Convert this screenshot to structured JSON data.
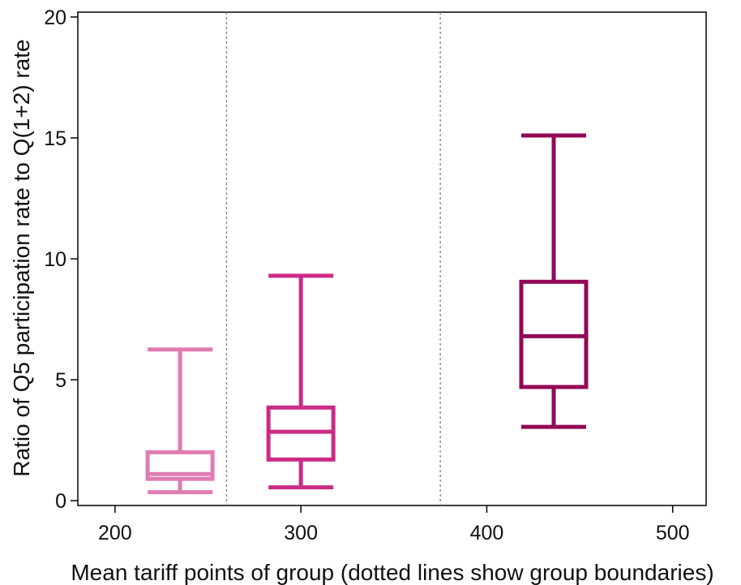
{
  "chart_data": {
    "type": "box",
    "xlabel": "Mean tariff points of group (dotted lines show group boundaries)",
    "ylabel": "Ratio of Q5 participation rate to Q(1+2) rate",
    "xlim": [
      180,
      518
    ],
    "ylim": [
      -0.2,
      20.2
    ],
    "x_ticks": [
      200,
      300,
      400,
      500
    ],
    "y_ticks": [
      0,
      5,
      10,
      15,
      20
    ],
    "group_boundaries": [
      260,
      375
    ],
    "grid": false,
    "legend": "none",
    "series": [
      {
        "x": 235,
        "whisker_low": 0.35,
        "q1": 0.9,
        "median": 1.1,
        "q3": 2.0,
        "whisker_high": 6.25,
        "color": "#e07cb3"
      },
      {
        "x": 300,
        "whisker_low": 0.55,
        "q1": 1.7,
        "median": 2.85,
        "q3": 3.85,
        "whisker_high": 9.3,
        "color": "#cc2b86"
      },
      {
        "x": 436,
        "whisker_low": 3.05,
        "q1": 4.7,
        "median": 6.8,
        "q3": 9.05,
        "whisker_high": 15.1,
        "color": "#930856"
      }
    ]
  }
}
